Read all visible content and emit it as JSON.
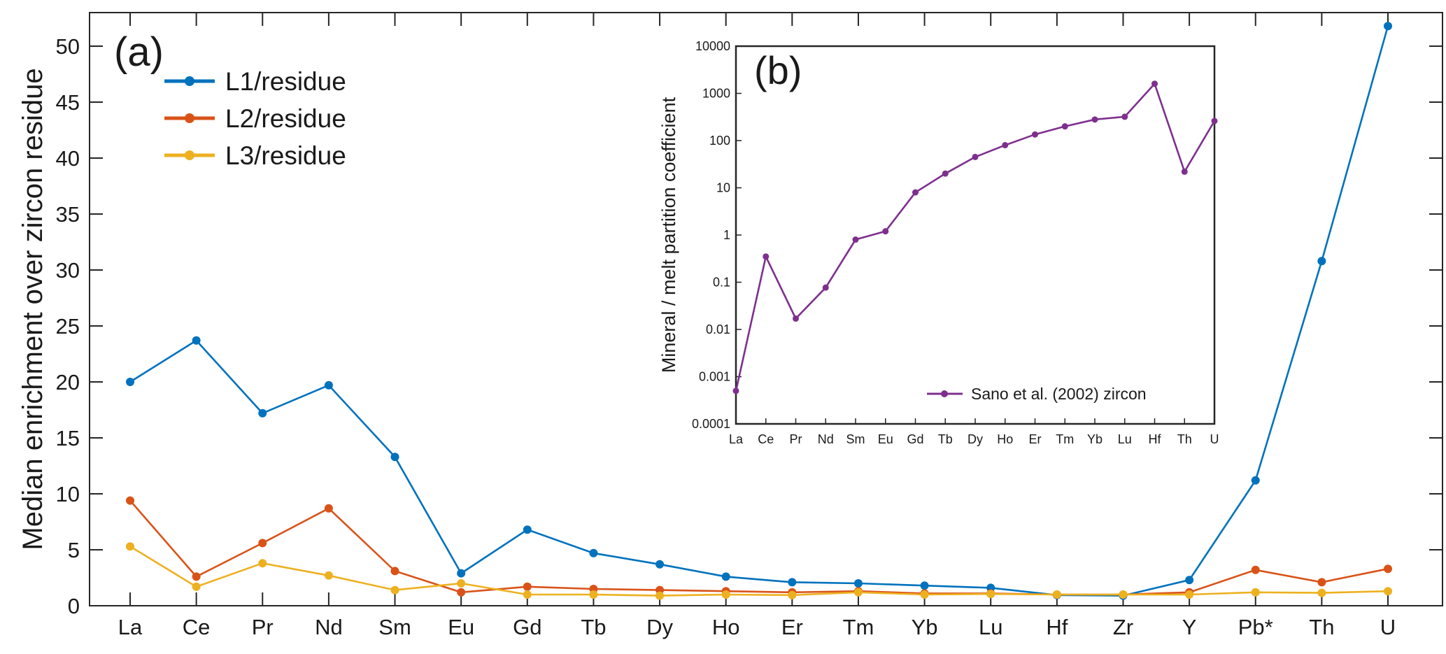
{
  "chart_data": [
    {
      "type": "line",
      "panel_label": "(a)",
      "title": "",
      "xlabel": "",
      "ylabel": "Median enrichment over zircon residue",
      "ylim": [
        0,
        53
      ],
      "yticks": [
        0,
        5,
        10,
        15,
        20,
        25,
        30,
        35,
        40,
        45,
        50
      ],
      "grid": false,
      "legend_position": "top-left",
      "categories": [
        "La",
        "Ce",
        "Pr",
        "Nd",
        "Sm",
        "Eu",
        "Gd",
        "Tb",
        "Dy",
        "Ho",
        "Er",
        "Tm",
        "Yb",
        "Lu",
        "Hf",
        "Zr",
        "Y",
        "Pb*",
        "Th",
        "U"
      ],
      "series": [
        {
          "name": "L1/residue",
          "color": "#0072BD",
          "values": [
            20.0,
            23.7,
            17.2,
            19.7,
            13.3,
            2.9,
            6.8,
            4.7,
            3.7,
            2.6,
            2.1,
            2.0,
            1.8,
            1.6,
            0.95,
            0.9,
            2.3,
            11.2,
            30.8,
            51.8
          ]
        },
        {
          "name": "L2/residue",
          "color": "#D95319",
          "values": [
            9.4,
            2.6,
            5.6,
            8.7,
            3.1,
            1.2,
            1.7,
            1.5,
            1.4,
            1.3,
            1.2,
            1.3,
            1.1,
            1.1,
            1.0,
            1.0,
            1.2,
            3.2,
            2.1,
            3.3
          ]
        },
        {
          "name": "L3/residue",
          "color": "#EDB120",
          "values": [
            5.3,
            1.7,
            3.8,
            2.7,
            1.4,
            2.0,
            1.0,
            1.0,
            0.9,
            1.0,
            0.95,
            1.2,
            1.0,
            1.05,
            1.0,
            1.0,
            1.0,
            1.2,
            1.15,
            1.3
          ]
        }
      ]
    },
    {
      "type": "line",
      "panel_label": "(b)",
      "title": "",
      "xlabel": "",
      "ylabel": "Mineral / melt partition coefficient",
      "yscale": "log",
      "ylim": [
        0.0001,
        10000
      ],
      "yticks": [
        "0.0001",
        "0.001",
        "0.01",
        "0.1",
        "1",
        "10",
        "100",
        "1000",
        "10000"
      ],
      "grid": false,
      "legend_position": "bottom-right",
      "categories": [
        "La",
        "Ce",
        "Pr",
        "Nd",
        "Sm",
        "Eu",
        "Gd",
        "Tb",
        "Dy",
        "Ho",
        "Er",
        "Tm",
        "Yb",
        "Lu",
        "Hf",
        "Th",
        "U"
      ],
      "series": [
        {
          "name": "Sano et al. (2002) zircon",
          "color": "#7E2F8E",
          "values": [
            0.0005,
            0.35,
            0.017,
            0.077,
            0.8,
            1.2,
            8,
            20,
            45,
            80,
            135,
            200,
            280,
            320,
            1600,
            22,
            260
          ]
        }
      ]
    }
  ]
}
